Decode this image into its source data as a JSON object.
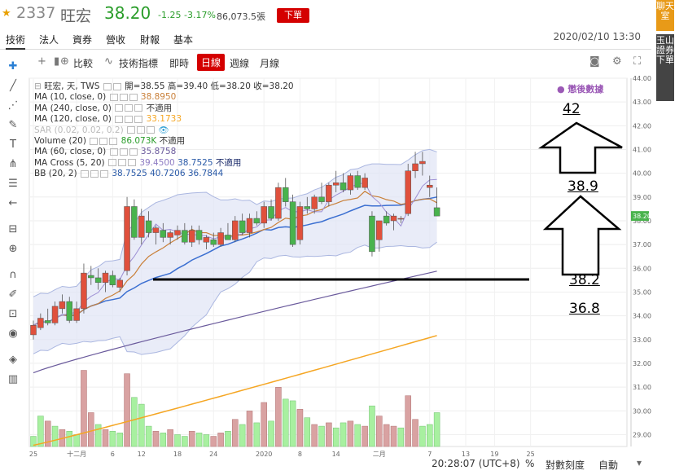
{
  "header": {
    "code": "2337",
    "name": "旺宏",
    "price": "38.20",
    "change": "-1.25",
    "change_pct": "-3.17%",
    "volume": "86,073.5張",
    "order_label": "下單"
  },
  "tabs": [
    {
      "label": "技術"
    },
    {
      "label": "法人"
    },
    {
      "label": "資券"
    },
    {
      "label": "營收"
    },
    {
      "label": "財報"
    },
    {
      "label": "基本"
    }
  ],
  "timestamp": "2020/02/10 13:30",
  "side": {
    "chat": "聊天室",
    "broker": "玉山證券下單"
  },
  "toolbar": {
    "compare": "比較",
    "indicators": "技術指標",
    "intraday": "即時",
    "daily": "日線",
    "weekly": "週線",
    "monthly": "月線"
  },
  "legend": {
    "ohlc": "旺宏, 天, TWS",
    "open": "開=38.55",
    "high": "高=39.40",
    "low": "低=38.20",
    "close": "收=38.20",
    "ma10": "MA (10, close, 0)",
    "ma10_v": "38.8950",
    "ma240": "MA (240, close, 0)",
    "ma240_v": "不適用",
    "ma120": "MA (120, close, 0)",
    "ma120_v": "33.1733",
    "sar": "SAR (0.02, 0.02, 0.2)",
    "vol": "Volume (20)",
    "vol_v": "86.073K",
    "vol_v2": "不適用",
    "ma60": "MA (60, close, 0)",
    "ma60_v": "35.8758",
    "cross": "MA Cross (5, 20)",
    "cross_v1": "39.4500",
    "cross_v2": "38.7525",
    "cross_v3": "不適用",
    "bb": "BB (20, 2)",
    "bb_v1": "38.7525",
    "bb_v2": "40.7206",
    "bb_v3": "36.7844"
  },
  "watermark": "懲後數據",
  "annotations": {
    "a42": "42",
    "a389": "38.9",
    "a382": "38.2",
    "a368": "36.8"
  },
  "bottom": {
    "time": "20:28:07 (UTC+8)",
    "pct": "%",
    "log": "對數刻度",
    "auto": "自動"
  },
  "colors": {
    "up": "#e0503c",
    "down": "#49b34d",
    "ma_fast": "#3b6fd1",
    "ma_mid": "#c9803a",
    "ma60": "#6a5a9c",
    "ma120": "#f5a623",
    "band": "#aab6e0"
  },
  "chart_data": {
    "type": "candlestick",
    "price_axis": {
      "min": 28.5,
      "max": 44.0,
      "ticks": [
        "29.00",
        "30.00",
        "31.00",
        "32.00",
        "33.00",
        "34.00",
        "35.00",
        "36.00",
        "37.00",
        "38.00",
        "39.00",
        "40.00",
        "41.00",
        "42.00",
        "43.00",
        "44.00"
      ],
      "last_label": "38.20"
    },
    "x_labels": [
      {
        "i": 0,
        "label": "25"
      },
      {
        "i": 6,
        "label": "十二月"
      },
      {
        "i": 11,
        "label": "6"
      },
      {
        "i": 15,
        "label": "12"
      },
      {
        "i": 20,
        "label": "18"
      },
      {
        "i": 25,
        "label": "24"
      },
      {
        "i": 32,
        "label": "2020"
      },
      {
        "i": 37,
        "label": "8"
      },
      {
        "i": 42,
        "label": "14"
      },
      {
        "i": 48,
        "label": "二月"
      },
      {
        "i": 55,
        "label": "7"
      },
      {
        "i": 60,
        "label": "13"
      },
      {
        "i": 64,
        "label": "19"
      },
      {
        "i": 69,
        "label": "25"
      }
    ],
    "candles": [
      {
        "o": 33.2,
        "h": 33.8,
        "l": 33.0,
        "c": 33.6
      },
      {
        "o": 33.5,
        "h": 34.1,
        "l": 33.4,
        "c": 33.9
      },
      {
        "o": 33.8,
        "h": 34.3,
        "l": 33.6,
        "c": 33.7
      },
      {
        "o": 33.7,
        "h": 34.6,
        "l": 33.6,
        "c": 34.4
      },
      {
        "o": 34.3,
        "h": 34.9,
        "l": 34.1,
        "c": 34.6
      },
      {
        "o": 34.6,
        "h": 34.8,
        "l": 33.7,
        "c": 33.8
      },
      {
        "o": 33.8,
        "h": 34.6,
        "l": 33.7,
        "c": 34.3
      },
      {
        "o": 34.3,
        "h": 36.2,
        "l": 34.1,
        "c": 35.8
      },
      {
        "o": 35.7,
        "h": 36.1,
        "l": 35.3,
        "c": 35.6
      },
      {
        "o": 35.6,
        "h": 36.0,
        "l": 35.1,
        "c": 35.4
      },
      {
        "o": 35.4,
        "h": 35.9,
        "l": 35.0,
        "c": 35.8
      },
      {
        "o": 35.7,
        "h": 35.9,
        "l": 35.2,
        "c": 35.3
      },
      {
        "o": 35.2,
        "h": 35.6,
        "l": 35.0,
        "c": 35.5
      },
      {
        "o": 35.9,
        "h": 39.0,
        "l": 35.7,
        "c": 38.6
      },
      {
        "o": 38.6,
        "h": 38.9,
        "l": 37.2,
        "c": 37.3
      },
      {
        "o": 37.3,
        "h": 38.5,
        "l": 37.0,
        "c": 38.2
      },
      {
        "o": 38.0,
        "h": 38.4,
        "l": 37.3,
        "c": 37.5
      },
      {
        "o": 37.5,
        "h": 37.8,
        "l": 37.0,
        "c": 37.7
      },
      {
        "o": 37.6,
        "h": 37.9,
        "l": 37.1,
        "c": 37.3
      },
      {
        "o": 37.3,
        "h": 37.6,
        "l": 37.0,
        "c": 37.5
      },
      {
        "o": 37.4,
        "h": 37.8,
        "l": 37.2,
        "c": 37.6
      },
      {
        "o": 37.6,
        "h": 37.9,
        "l": 37.0,
        "c": 37.1
      },
      {
        "o": 37.1,
        "h": 37.8,
        "l": 36.9,
        "c": 37.6
      },
      {
        "o": 37.6,
        "h": 37.8,
        "l": 37.0,
        "c": 37.2
      },
      {
        "o": 37.1,
        "h": 37.4,
        "l": 36.8,
        "c": 37.3
      },
      {
        "o": 37.2,
        "h": 37.5,
        "l": 36.9,
        "c": 37.0
      },
      {
        "o": 37.0,
        "h": 37.7,
        "l": 36.9,
        "c": 37.5
      },
      {
        "o": 37.4,
        "h": 37.9,
        "l": 37.2,
        "c": 37.2
      },
      {
        "o": 37.2,
        "h": 38.2,
        "l": 37.1,
        "c": 38.0
      },
      {
        "o": 38.0,
        "h": 38.3,
        "l": 37.4,
        "c": 37.5
      },
      {
        "o": 37.5,
        "h": 38.3,
        "l": 37.3,
        "c": 38.1
      },
      {
        "o": 38.1,
        "h": 38.4,
        "l": 37.8,
        "c": 37.9
      },
      {
        "o": 37.9,
        "h": 38.8,
        "l": 37.7,
        "c": 38.6
      },
      {
        "o": 38.6,
        "h": 38.9,
        "l": 38.0,
        "c": 38.1
      },
      {
        "o": 38.1,
        "h": 39.6,
        "l": 38.0,
        "c": 39.4
      },
      {
        "o": 39.4,
        "h": 39.8,
        "l": 38.6,
        "c": 38.8
      },
      {
        "o": 38.8,
        "h": 39.1,
        "l": 36.9,
        "c": 37.0
      },
      {
        "o": 37.2,
        "h": 38.8,
        "l": 37.0,
        "c": 38.6
      },
      {
        "o": 38.6,
        "h": 39.0,
        "l": 38.3,
        "c": 38.5
      },
      {
        "o": 38.5,
        "h": 39.1,
        "l": 38.3,
        "c": 39.0
      },
      {
        "o": 39.0,
        "h": 39.6,
        "l": 38.7,
        "c": 38.8
      },
      {
        "o": 38.8,
        "h": 39.6,
        "l": 38.6,
        "c": 39.5
      },
      {
        "o": 39.5,
        "h": 40.1,
        "l": 39.2,
        "c": 39.6
      },
      {
        "o": 39.6,
        "h": 40.0,
        "l": 39.2,
        "c": 39.3
      },
      {
        "o": 39.3,
        "h": 40.0,
        "l": 39.1,
        "c": 39.9
      },
      {
        "o": 39.9,
        "h": 40.1,
        "l": 39.3,
        "c": 39.4
      },
      {
        "o": 39.4,
        "h": 40.0,
        "l": 39.3,
        "c": 39.8
      },
      {
        "o": 38.2,
        "h": 38.4,
        "l": 36.5,
        "c": 36.7
      },
      {
        "o": 37.2,
        "h": 38.0,
        "l": 36.7,
        "c": 38.0
      },
      {
        "o": 38.2,
        "h": 38.4,
        "l": 37.8,
        "c": 37.9
      },
      {
        "o": 38.0,
        "h": 38.3,
        "l": 37.6,
        "c": 38.2
      },
      {
        "o": 38.1,
        "h": 38.2,
        "l": 37.9,
        "c": 38.1
      },
      {
        "o": 38.3,
        "h": 40.4,
        "l": 38.2,
        "c": 40.1
      },
      {
        "o": 40.1,
        "h": 40.9,
        "l": 39.8,
        "c": 40.4
      },
      {
        "o": 40.4,
        "h": 40.9,
        "l": 39.9,
        "c": 40.5
      },
      {
        "o": 39.4,
        "h": 39.9,
        "l": 39.0,
        "c": 39.5
      },
      {
        "o": 38.55,
        "h": 39.4,
        "l": 38.2,
        "c": 38.2
      }
    ],
    "volume": [
      {
        "v": 0.6,
        "up": false
      },
      {
        "v": 1.8,
        "up": false
      },
      {
        "v": 1.5,
        "up": true
      },
      {
        "v": 1.2,
        "up": false
      },
      {
        "v": 1.0,
        "up": true
      },
      {
        "v": 0.9,
        "up": false
      },
      {
        "v": 0.7,
        "up": false
      },
      {
        "v": 4.5,
        "up": true
      },
      {
        "v": 2.0,
        "up": true
      },
      {
        "v": 1.3,
        "up": false
      },
      {
        "v": 1.0,
        "up": true
      },
      {
        "v": 0.9,
        "up": false
      },
      {
        "v": 0.8,
        "up": false
      },
      {
        "v": 4.3,
        "up": true
      },
      {
        "v": 2.9,
        "up": false
      },
      {
        "v": 2.5,
        "up": false
      },
      {
        "v": 1.2,
        "up": false
      },
      {
        "v": 0.9,
        "up": true
      },
      {
        "v": 0.8,
        "up": false
      },
      {
        "v": 1.0,
        "up": true
      },
      {
        "v": 0.7,
        "up": false
      },
      {
        "v": 0.6,
        "up": false
      },
      {
        "v": 0.9,
        "up": true
      },
      {
        "v": 0.8,
        "up": false
      },
      {
        "v": 0.7,
        "up": false
      },
      {
        "v": 0.6,
        "up": true
      },
      {
        "v": 0.8,
        "up": true
      },
      {
        "v": 0.9,
        "up": false
      },
      {
        "v": 1.6,
        "up": true
      },
      {
        "v": 1.3,
        "up": false
      },
      {
        "v": 2.1,
        "up": true
      },
      {
        "v": 1.4,
        "up": false
      },
      {
        "v": 2.6,
        "up": true
      },
      {
        "v": 1.5,
        "up": false
      },
      {
        "v": 3.5,
        "up": true
      },
      {
        "v": 2.8,
        "up": false
      },
      {
        "v": 2.7,
        "up": false
      },
      {
        "v": 2.2,
        "up": true
      },
      {
        "v": 1.7,
        "up": false
      },
      {
        "v": 1.3,
        "up": true
      },
      {
        "v": 1.2,
        "up": false
      },
      {
        "v": 1.4,
        "up": true
      },
      {
        "v": 1.1,
        "up": false
      },
      {
        "v": 1.4,
        "up": false
      },
      {
        "v": 1.5,
        "up": true
      },
      {
        "v": 1.3,
        "up": false
      },
      {
        "v": 1.2,
        "up": true
      },
      {
        "v": 2.4,
        "up": false
      },
      {
        "v": 1.8,
        "up": true
      },
      {
        "v": 1.3,
        "up": true
      },
      {
        "v": 1.2,
        "up": true
      },
      {
        "v": 1.1,
        "up": false
      },
      {
        "v": 3.0,
        "up": true
      },
      {
        "v": 1.6,
        "up": true
      },
      {
        "v": 1.2,
        "up": false
      },
      {
        "v": 1.3,
        "up": false
      },
      {
        "v": 2.0,
        "up": false
      }
    ],
    "support_line": 36.0
  }
}
